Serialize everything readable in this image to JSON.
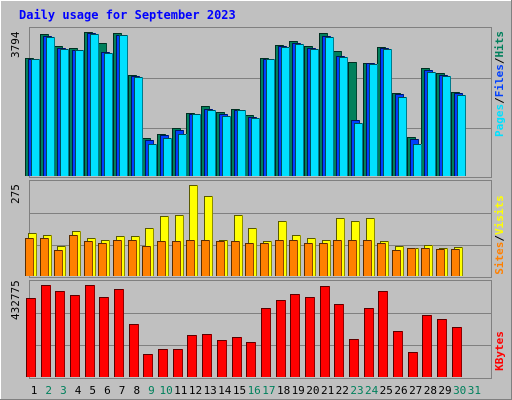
{
  "title": "Daily usage for September 2023",
  "colors": {
    "background": "#c0c0c0",
    "title": "#0000ff",
    "hits": "#00805c",
    "files": "#0040ff",
    "pages": "#00e0ff",
    "visits": "#ffff00",
    "sites": "#ff8000",
    "kbytes": "#ff0000",
    "weekend_label": "#00805c",
    "weekday_label": "#000000"
  },
  "chart_data": [
    {
      "type": "bar",
      "panel": "hits-files-pages",
      "y_axis_max_label": "3794",
      "legend": [
        "Pages",
        "Files",
        "Hits"
      ],
      "categories": [
        "1",
        "2",
        "3",
        "4",
        "5",
        "6",
        "7",
        "8",
        "9",
        "10",
        "11",
        "12",
        "13",
        "14",
        "15",
        "16",
        "17",
        "18",
        "19",
        "20",
        "21",
        "22",
        "23",
        "24",
        "25",
        "26",
        "27",
        "28",
        "29",
        "30",
        "31"
      ],
      "series": [
        {
          "name": "Hits",
          "values": [
            3100,
            3740,
            3400,
            3370,
            3780,
            3500,
            3760,
            2650,
            1000,
            1090,
            1250,
            1660,
            1830,
            1680,
            1760,
            1590,
            3100,
            3430,
            3540,
            3410,
            3750,
            3270,
            3000,
            2960,
            3390,
            2170,
            1020,
            2830,
            2700,
            2210,
            0
          ]
        },
        {
          "name": "Files",
          "values": [
            3080,
            3680,
            3370,
            3310,
            3760,
            3260,
            3710,
            2620,
            940,
            1080,
            1200,
            1640,
            1770,
            1640,
            1740,
            1540,
            3080,
            3420,
            3490,
            3370,
            3680,
            3160,
            1480,
            2960,
            3370,
            2140,
            980,
            2780,
            2640,
            2170,
            0
          ]
        },
        {
          "name": "Pages",
          "values": [
            3060,
            3660,
            3340,
            3300,
            3740,
            3240,
            3690,
            2590,
            840,
            1010,
            1100,
            1620,
            1720,
            1580,
            1730,
            1510,
            3060,
            3390,
            3460,
            3340,
            3650,
            3120,
            1400,
            2930,
            3340,
            2070,
            850,
            2730,
            2620,
            2130,
            0
          ]
        }
      ]
    },
    {
      "type": "bar",
      "panel": "visits-sites",
      "y_axis_max_label": "275",
      "legend": [
        "Sites",
        "Visits"
      ],
      "categories": [
        "1",
        "2",
        "3",
        "4",
        "5",
        "6",
        "7",
        "8",
        "9",
        "10",
        "11",
        "12",
        "13",
        "14",
        "15",
        "16",
        "17",
        "18",
        "19",
        "20",
        "21",
        "22",
        "23",
        "24",
        "25",
        "26",
        "27",
        "28",
        "29",
        "30",
        "31"
      ],
      "series": [
        {
          "name": "Visits",
          "values": [
            130,
            125,
            90,
            135,
            115,
            110,
            120,
            120,
            145,
            180,
            185,
            275,
            242,
            110,
            185,
            145,
            105,
            165,
            125,
            115,
            110,
            175,
            165,
            175,
            105,
            90,
            85,
            95,
            85,
            88,
            0
          ]
        },
        {
          "name": "Sites",
          "values": [
            115,
            115,
            80,
            125,
            105,
            100,
            110,
            110,
            90,
            105,
            105,
            110,
            110,
            105,
            105,
            100,
            100,
            110,
            110,
            100,
            100,
            110,
            110,
            110,
            100,
            80,
            85,
            85,
            82,
            82,
            0
          ]
        }
      ]
    },
    {
      "type": "bar",
      "panel": "kbytes",
      "y_axis_max_label": "432775",
      "legend": [
        "KBytes"
      ],
      "categories": [
        "1",
        "2",
        "3",
        "4",
        "5",
        "6",
        "7",
        "8",
        "9",
        "10",
        "11",
        "12",
        "13",
        "14",
        "15",
        "16",
        "17",
        "18",
        "19",
        "20",
        "21",
        "22",
        "23",
        "24",
        "25",
        "26",
        "27",
        "28",
        "29",
        "30",
        "31"
      ],
      "series": [
        {
          "name": "KBytes",
          "values": [
            368000,
            428000,
            398000,
            381000,
            428000,
            372000,
            408000,
            248000,
            105000,
            130000,
            130000,
            195000,
            202000,
            173000,
            184000,
            164000,
            320000,
            360000,
            387000,
            370000,
            422000,
            340000,
            175000,
            320000,
            398000,
            216000,
            115000,
            290000,
            270000,
            232000,
            0
          ]
        }
      ]
    }
  ],
  "x_labels": [
    {
      "label": "1",
      "weekend": false
    },
    {
      "label": "2",
      "weekend": true
    },
    {
      "label": "3",
      "weekend": true
    },
    {
      "label": "4",
      "weekend": false
    },
    {
      "label": "5",
      "weekend": false
    },
    {
      "label": "6",
      "weekend": false
    },
    {
      "label": "7",
      "weekend": false
    },
    {
      "label": "8",
      "weekend": false
    },
    {
      "label": "9",
      "weekend": true
    },
    {
      "label": "10",
      "weekend": true
    },
    {
      "label": "11",
      "weekend": false
    },
    {
      "label": "12",
      "weekend": false
    },
    {
      "label": "13",
      "weekend": false
    },
    {
      "label": "14",
      "weekend": false
    },
    {
      "label": "15",
      "weekend": false
    },
    {
      "label": "16",
      "weekend": true
    },
    {
      "label": "17",
      "weekend": true
    },
    {
      "label": "18",
      "weekend": false
    },
    {
      "label": "19",
      "weekend": false
    },
    {
      "label": "20",
      "weekend": false
    },
    {
      "label": "21",
      "weekend": false
    },
    {
      "label": "22",
      "weekend": false
    },
    {
      "label": "23",
      "weekend": true
    },
    {
      "label": "24",
      "weekend": true
    },
    {
      "label": "25",
      "weekend": false
    },
    {
      "label": "26",
      "weekend": false
    },
    {
      "label": "27",
      "weekend": false
    },
    {
      "label": "28",
      "weekend": false
    },
    {
      "label": "29",
      "weekend": false
    },
    {
      "label": "30",
      "weekend": true
    },
    {
      "label": "31",
      "weekend": true
    }
  ]
}
